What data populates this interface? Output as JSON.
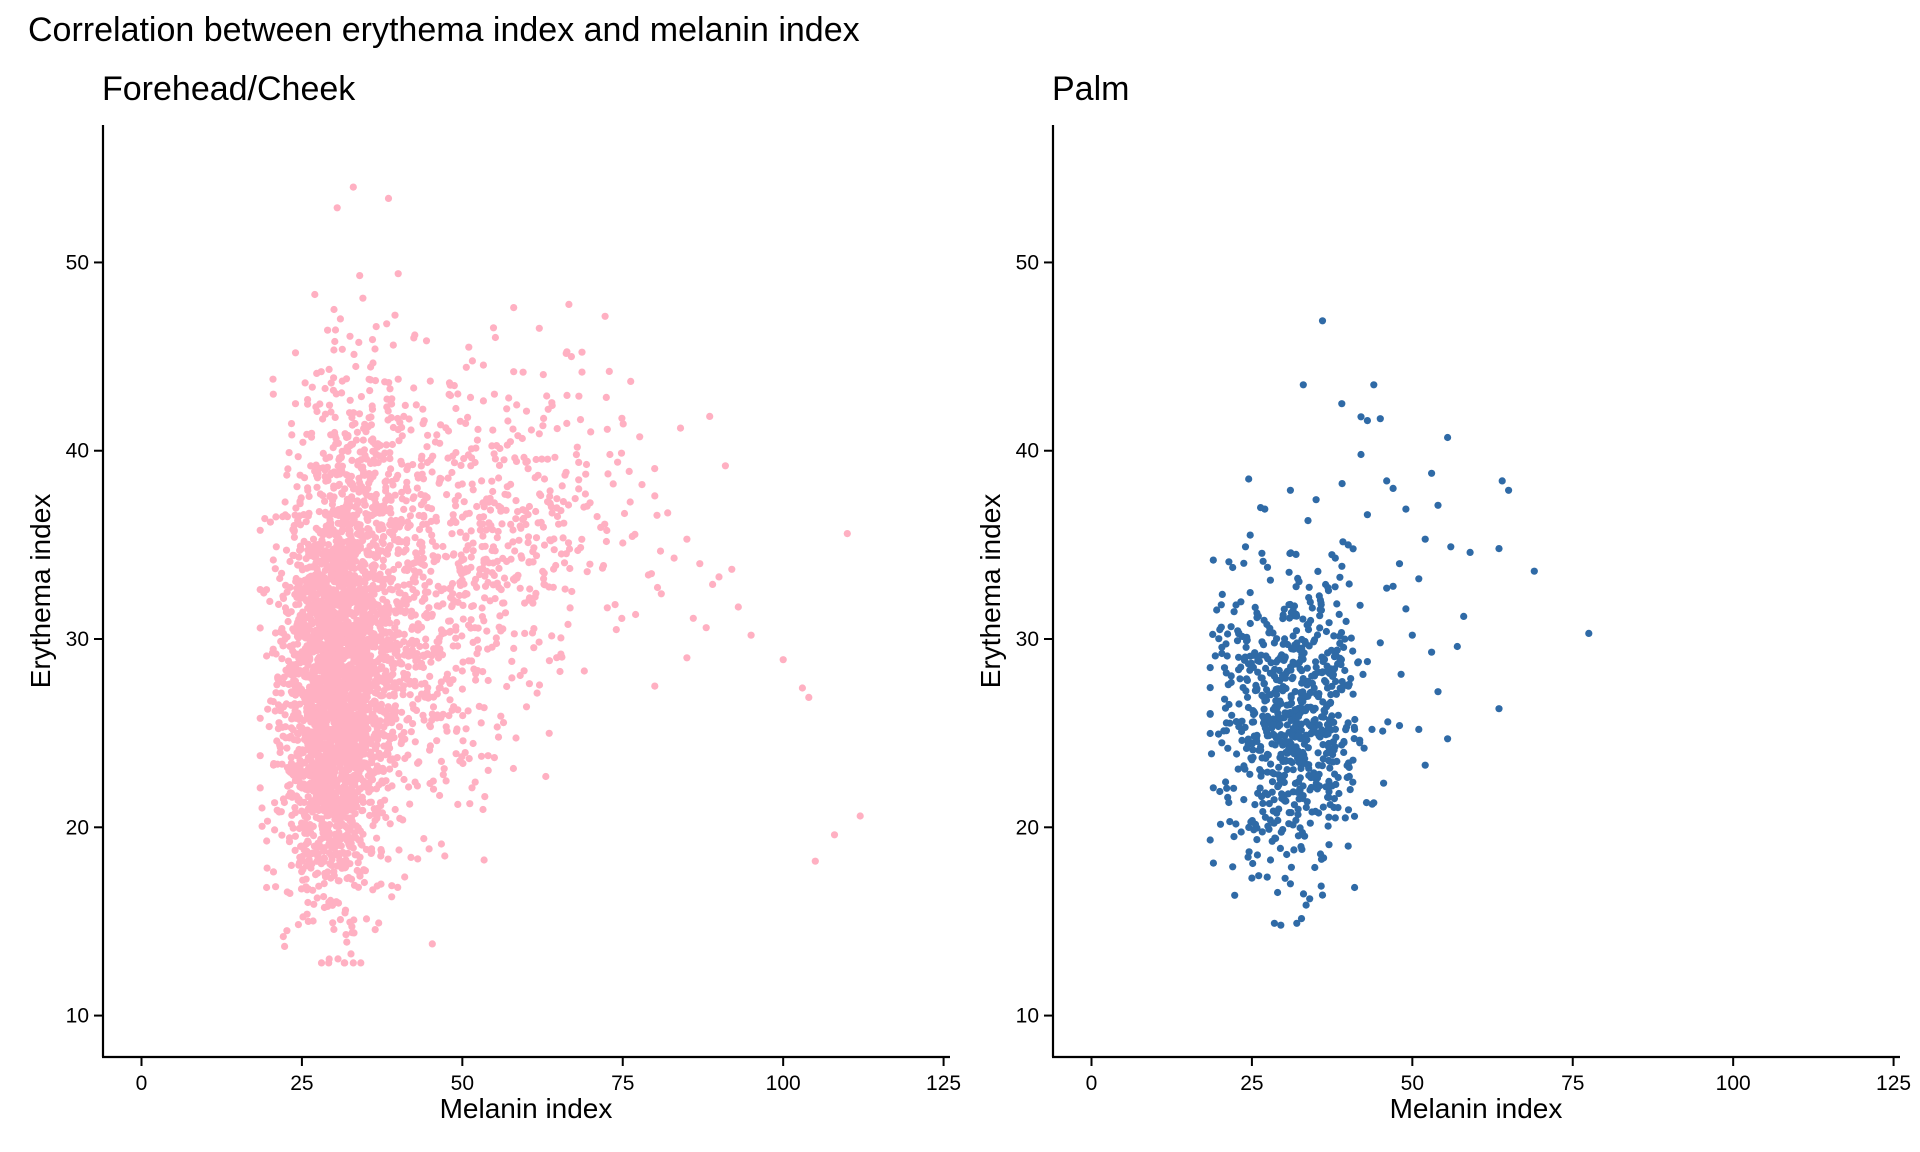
{
  "title": "Correlation between erythema index and melanin index",
  "colors": {
    "forehead": "#FFB0C2",
    "palm": "#2F6AA6",
    "axis": "#000000",
    "background": "#FFFFFF"
  },
  "panels": [
    {
      "subtitle": "Forehead/Cheek",
      "xlabel": "Melanin index",
      "ylabel": "Erythema index",
      "xticks": [
        "0",
        "25",
        "50",
        "75",
        "100",
        "125"
      ],
      "yticks": [
        "10",
        "20",
        "30",
        "40",
        "50"
      ]
    },
    {
      "subtitle": "Palm",
      "xlabel": "Melanin index",
      "ylabel": "Erythema index",
      "xticks": [
        "0",
        "25",
        "50",
        "75",
        "100",
        "125"
      ],
      "yticks": [
        "10",
        "20",
        "30",
        "40",
        "50"
      ]
    }
  ],
  "chart_data": [
    {
      "type": "scatter",
      "title": "Forehead/Cheek",
      "xlabel": "Melanin index",
      "ylabel": "Erythema index",
      "xlim": [
        -6,
        126
      ],
      "ylim": [
        7.8,
        57.3
      ],
      "color": "#FFB0C2",
      "grid": false,
      "legend": "none",
      "points": [
        [
          33,
          54
        ],
        [
          38.5,
          53.4
        ],
        [
          30.5,
          52.9
        ],
        [
          40,
          49.4
        ],
        [
          34,
          49.3
        ],
        [
          27,
          48.3
        ],
        [
          58,
          47.6
        ],
        [
          30,
          47.5
        ],
        [
          34.5,
          48.1
        ],
        [
          31,
          47.0
        ],
        [
          39.5,
          47.2
        ],
        [
          67,
          45.0
        ],
        [
          62,
          46.5
        ],
        [
          51,
          45.5
        ],
        [
          36,
          45.9
        ],
        [
          29,
          46.4
        ],
        [
          24,
          45.2
        ],
        [
          48,
          43.6
        ],
        [
          45,
          43.7
        ],
        [
          55,
          43.0
        ],
        [
          58,
          44.2
        ],
        [
          60,
          42.1
        ],
        [
          64,
          42.4
        ],
        [
          70,
          41.0
        ],
        [
          84,
          41.2
        ],
        [
          73,
          39.8
        ],
        [
          76,
          38.9
        ],
        [
          78,
          38.2
        ],
        [
          80,
          37.6
        ],
        [
          82,
          36.7
        ],
        [
          85,
          35.3
        ],
        [
          87,
          34.0
        ],
        [
          90,
          33.3
        ],
        [
          92,
          33.7
        ],
        [
          91,
          39.2
        ],
        [
          110,
          35.6
        ],
        [
          89,
          32.9
        ],
        [
          93,
          31.7
        ],
        [
          95,
          30.2
        ],
        [
          100,
          28.9
        ],
        [
          103,
          27.4
        ],
        [
          104,
          26.9
        ],
        [
          112,
          20.6
        ],
        [
          108,
          19.6
        ],
        [
          105,
          18.2
        ],
        [
          80,
          27.5
        ],
        [
          74,
          30.5
        ],
        [
          77,
          31.3
        ],
        [
          69,
          28.3
        ],
        [
          63,
          22.7
        ],
        [
          52,
          22.4
        ],
        [
          55,
          23.7
        ],
        [
          47,
          26.0
        ],
        [
          44,
          19.4
        ],
        [
          39,
          16.9
        ],
        [
          42,
          18.4
        ],
        [
          33,
          12.8
        ],
        [
          32,
          13.9
        ],
        [
          31,
          15.1
        ],
        [
          29,
          15.8
        ],
        [
          26,
          15.0
        ],
        [
          19.5,
          16.8
        ],
        [
          18.5,
          23.8
        ],
        [
          19.5,
          29.1
        ],
        [
          20,
          32.0
        ],
        [
          21,
          34.9
        ],
        [
          22,
          36.5
        ],
        [
          23,
          39.9
        ],
        [
          24,
          42.5
        ],
        [
          25.5,
          43.6
        ],
        [
          28,
          44.2
        ],
        [
          65,
          36.1
        ],
        [
          68,
          34.7
        ],
        [
          72,
          33.9
        ],
        [
          66,
          38.7
        ],
        [
          62,
          40.9
        ],
        [
          57,
          40.3
        ],
        [
          53,
          38.4
        ],
        [
          49,
          39.9
        ],
        [
          61,
          31.9
        ],
        [
          58,
          29.5
        ],
        [
          56,
          25.9
        ],
        [
          60,
          26.4
        ],
        [
          46,
          24.6
        ],
        [
          43,
          22.2
        ],
        [
          50,
          28.3
        ],
        [
          54,
          33.0
        ],
        [
          71,
          36.5
        ],
        [
          75,
          35.1
        ],
        [
          79,
          33.4
        ],
        [
          81,
          32.4
        ],
        [
          83,
          34.3
        ],
        [
          86,
          31.1
        ],
        [
          88,
          30.6
        ],
        [
          85,
          29.0
        ],
        [
          59,
          36.0
        ],
        [
          42,
          41.1
        ],
        [
          44,
          37.3
        ],
        [
          46,
          34.2
        ],
        [
          40,
          43.8
        ],
        [
          36,
          42.2
        ]
      ],
      "clusters": [
        {
          "center": [
            30.5,
            28
          ],
          "spread": [
            4.2,
            5.0
          ],
          "n": 2300
        },
        {
          "center": [
            42,
            31
          ],
          "spread": [
            8.0,
            5.0
          ],
          "n": 650
        },
        {
          "center": [
            58,
            36
          ],
          "spread": [
            10.0,
            4.0
          ],
          "n": 320
        },
        {
          "center": [
            29,
            21
          ],
          "spread": [
            4.0,
            2.8
          ],
          "n": 260
        },
        {
          "center": [
            35,
            39
          ],
          "spread": [
            5.5,
            3.0
          ],
          "n": 250
        }
      ]
    },
    {
      "type": "scatter",
      "title": "Palm",
      "xlabel": "Melanin index",
      "ylabel": "Erythema index",
      "xlim": [
        -6,
        126
      ],
      "ylim": [
        7.8,
        57.3
      ],
      "color": "#2F6AA6",
      "grid": false,
      "legend": "none",
      "points": [
        [
          36,
          46.9
        ],
        [
          33,
          43.5
        ],
        [
          44,
          43.5
        ],
        [
          39,
          42.5
        ],
        [
          42,
          41.8
        ],
        [
          43,
          41.6
        ],
        [
          45,
          41.7
        ],
        [
          55.5,
          40.7
        ],
        [
          64,
          38.4
        ],
        [
          65,
          37.9
        ],
        [
          53,
          38.8
        ],
        [
          46,
          38.4
        ],
        [
          24.5,
          38.5
        ],
        [
          47,
          38.0
        ],
        [
          49,
          36.9
        ],
        [
          54,
          37.1
        ],
        [
          42,
          39.8
        ],
        [
          69,
          33.6
        ],
        [
          77.5,
          30.3
        ],
        [
          63.5,
          34.8
        ],
        [
          63.5,
          26.3
        ],
        [
          59,
          34.6
        ],
        [
          56,
          34.9
        ],
        [
          58,
          31.2
        ],
        [
          57,
          29.6
        ],
        [
          55.5,
          24.7
        ],
        [
          52,
          23.3
        ],
        [
          51,
          25.2
        ],
        [
          50,
          30.2
        ],
        [
          53,
          29.3
        ],
        [
          54,
          27.2
        ],
        [
          48,
          25.4
        ],
        [
          44,
          21.3
        ],
        [
          41,
          16.8
        ],
        [
          32,
          14.9
        ],
        [
          29.5,
          14.8
        ],
        [
          28.5,
          14.9
        ],
        [
          34,
          16.2
        ],
        [
          36,
          16.4
        ],
        [
          31,
          17.0
        ],
        [
          25,
          17.3
        ],
        [
          22,
          17.9
        ],
        [
          19,
          18.1
        ],
        [
          20,
          21.9
        ],
        [
          21,
          28.2
        ],
        [
          20,
          30.5
        ],
        [
          22,
          33.8
        ],
        [
          24,
          34.9
        ],
        [
          27,
          36.9
        ],
        [
          31,
          37.9
        ],
        [
          35,
          37.4
        ],
        [
          40,
          35.0
        ],
        [
          43,
          36.6
        ],
        [
          38,
          34.3
        ],
        [
          46,
          32.7
        ],
        [
          48,
          34.0
        ],
        [
          45,
          29.8
        ],
        [
          47,
          32.8
        ],
        [
          51,
          33.2
        ],
        [
          49,
          31.6
        ],
        [
          52,
          35.3
        ],
        [
          18.5,
          26.0
        ],
        [
          38,
          20.5
        ],
        [
          40,
          19.0
        ],
        [
          37.5,
          22.2
        ],
        [
          39,
          27.3
        ],
        [
          41,
          25.2
        ],
        [
          43,
          28.8
        ]
      ],
      "clusters": [
        {
          "center": [
            31,
            25.5
          ],
          "spread": [
            4.8,
            3.7
          ],
          "n": 560
        },
        {
          "center": [
            37,
            28
          ],
          "spread": [
            3.0,
            3.5
          ],
          "n": 110
        },
        {
          "center": [
            24,
            27
          ],
          "spread": [
            3.0,
            3.5
          ],
          "n": 60
        }
      ]
    }
  ]
}
